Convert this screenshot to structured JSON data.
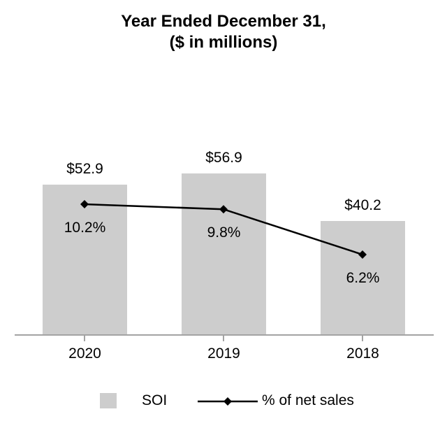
{
  "title": {
    "line1": "Year Ended December 31,",
    "line2": "($ in millions)"
  },
  "chart_data": {
    "type": "bar",
    "title": "Year Ended December 31,",
    "subtitle": "($ in millions)",
    "categories": [
      "2020",
      "2019",
      "2018"
    ],
    "series": [
      {
        "name": "SOI",
        "type": "bar",
        "values": [
          52.9,
          56.9,
          40.2
        ],
        "data_labels": [
          "$52.9",
          "$56.9",
          "$40.2"
        ],
        "color": "#cdcdcd"
      },
      {
        "name": "% of net sales",
        "type": "line",
        "values": [
          10.2,
          9.8,
          6.2
        ],
        "data_labels": [
          "10.2%",
          "9.8%",
          "6.2%"
        ],
        "color": "#000000",
        "marker": "diamond"
      }
    ],
    "legend": [
      "SOI",
      "% of net sales"
    ],
    "legend_position": "bottom",
    "grid": false,
    "axes": {
      "x_ticks": [
        "2020",
        "2019",
        "2018"
      ],
      "y_axis_visible": false
    }
  },
  "colors": {
    "bar_fill": "#cdcdcd",
    "axis_line": "#a3a3a3",
    "series_line": "#000000",
    "text": "#000000",
    "background": "#ffffff"
  }
}
